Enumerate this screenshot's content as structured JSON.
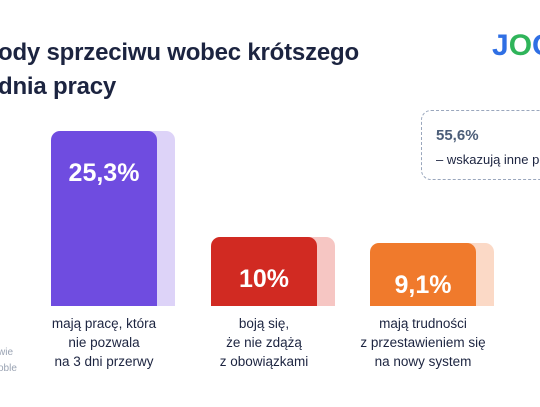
{
  "title_lines": [
    "ody sprzeciwu wobec krótszego",
    "dnia pracy"
  ],
  "logo": {
    "j": "J",
    "o1": "O",
    "o2": "O"
  },
  "note": {
    "value": "55,6%",
    "text": "– wskazują inne po"
  },
  "source_lines": [
    "wie",
    "oble"
  ],
  "chart_data": {
    "type": "bar",
    "title": "",
    "ylim": [
      0,
      27
    ],
    "categories": [
      "mają pracę, która nie pozwala na 3 dni przerwy",
      "boją się, że nie zdążą z obowiązkami",
      "mają trudności z przestawieniem się na nowy system"
    ],
    "values": [
      25.3,
      10,
      9.1
    ],
    "value_labels": [
      "25,3%",
      "10%",
      "9,1%"
    ],
    "label_lines": [
      [
        "mają pracę, która",
        "nie pozwala",
        "na 3 dni przerwy"
      ],
      [
        "boją się,",
        "że nie zdążą",
        "z obowiązkami"
      ],
      [
        "mają trudności",
        "z przestawieniem się",
        "na nowy system"
      ]
    ],
    "colors": [
      "#6f4ce0",
      "#d12a22",
      "#f07a2c"
    ],
    "shadow_colors": [
      "#ddd3f8",
      "#f6c6c3",
      "#fbd9c6"
    ]
  }
}
